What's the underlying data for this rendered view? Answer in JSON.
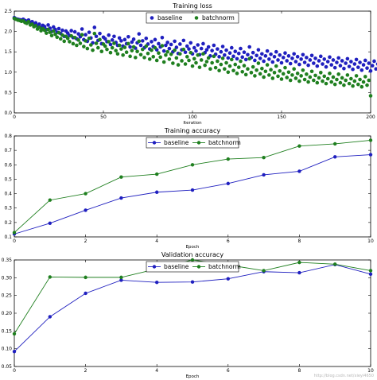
{
  "watermark": "http://blog.csdn.net/xieyi4650",
  "chart_data": [
    {
      "type": "scatter",
      "title": "Training loss",
      "xlabel": "Iteration",
      "ylabel": "",
      "xlim": [
        0,
        200
      ],
      "ylim": [
        0.0,
        2.5
      ],
      "xticks": [
        0,
        50,
        100,
        150,
        200
      ],
      "yticks": [
        0.0,
        0.5,
        1.0,
        1.5,
        2.0,
        2.5
      ],
      "grid": false,
      "legend_position": "top-center",
      "series": [
        {
          "name": "baseline",
          "color": "#1f1fbf",
          "values": [
            2.34,
            2.31,
            2.3,
            2.29,
            2.28,
            2.3,
            2.27,
            2.25,
            2.28,
            2.22,
            2.24,
            2.19,
            2.21,
            2.14,
            2.18,
            2.1,
            2.15,
            2.12,
            2.05,
            2.16,
            2.08,
            2.0,
            2.11,
            2.05,
            1.98,
            2.07,
            1.95,
            2.03,
            1.88,
            2.01,
            1.96,
            1.9,
            2.02,
            1.85,
            1.99,
            1.82,
            1.94,
            1.87,
            2.06,
            1.8,
            1.92,
            1.76,
            1.98,
            1.84,
            1.72,
            2.1,
            1.88,
            1.78,
            1.95,
            1.7,
            1.86,
            1.82,
            1.75,
            1.91,
            1.68,
            1.79,
            1.88,
            1.73,
            1.66,
            1.84,
            1.77,
            1.64,
            1.8,
            1.7,
            1.87,
            1.62,
            1.74,
            1.81,
            1.59,
            1.72,
            1.94,
            1.66,
            1.77,
            1.6,
            1.83,
            1.69,
            1.57,
            1.75,
            1.63,
            1.8,
            1.55,
            1.7,
            1.62,
            1.85,
            1.52,
            1.66,
            1.73,
            1.58,
            1.68,
            1.5,
            1.76,
            1.61,
            1.46,
            1.69,
            1.55,
            1.78,
            1.49,
            1.64,
            1.57,
            1.72,
            1.45,
            1.6,
            1.52,
            1.67,
            1.43,
            1.58,
            1.7,
            1.48,
            1.55,
            1.62,
            1.4,
            1.53,
            1.66,
            1.44,
            1.57,
            1.38,
            1.5,
            1.63,
            1.42,
            1.54,
            1.35,
            1.47,
            1.6,
            1.39,
            1.51,
            1.33,
            1.46,
            1.58,
            1.37,
            1.49,
            1.31,
            1.43,
            1.62,
            1.36,
            1.48,
            1.29,
            1.41,
            1.55,
            1.34,
            1.45,
            1.27,
            1.4,
            1.52,
            1.32,
            1.44,
            1.25,
            1.38,
            1.5,
            1.3,
            1.42,
            1.23,
            1.36,
            1.47,
            1.28,
            1.4,
            1.21,
            1.34,
            1.45,
            1.26,
            1.38,
            1.19,
            1.32,
            1.43,
            1.24,
            1.36,
            1.17,
            1.3,
            1.41,
            1.22,
            1.34,
            1.15,
            1.28,
            1.39,
            1.2,
            1.32,
            1.13,
            1.26,
            1.37,
            1.18,
            1.3,
            1.11,
            1.24,
            1.35,
            1.16,
            1.28,
            1.09,
            1.22,
            1.33,
            1.14,
            1.26,
            1.07,
            1.2,
            1.31,
            1.12,
            1.24,
            1.05,
            1.18,
            1.29,
            1.1,
            1.22,
            1.03,
            1.16,
            1.27,
            1.08,
            1.2,
            1.01
          ]
        },
        {
          "name": "batchnorm",
          "color": "#1f7f1f",
          "values": [
            2.32,
            2.3,
            2.28,
            2.27,
            2.25,
            2.26,
            2.22,
            2.2,
            2.24,
            2.16,
            2.18,
            2.12,
            2.14,
            2.06,
            2.1,
            2.02,
            2.07,
            2.03,
            1.96,
            2.05,
            1.98,
            1.9,
            2.01,
            1.93,
            1.86,
            1.97,
            1.82,
            1.91,
            1.76,
            1.88,
            1.83,
            1.75,
            1.89,
            1.7,
            1.85,
            1.66,
            1.79,
            1.71,
            1.92,
            1.63,
            1.77,
            1.58,
            1.83,
            1.67,
            1.54,
            1.95,
            1.71,
            1.6,
            1.8,
            1.51,
            1.69,
            1.64,
            1.56,
            1.75,
            1.48,
            1.6,
            1.71,
            1.53,
            1.45,
            1.66,
            1.57,
            1.42,
            1.61,
            1.49,
            1.7,
            1.39,
            1.53,
            1.62,
            1.36,
            1.51,
            1.76,
            1.43,
            1.56,
            1.36,
            1.64,
            1.46,
            1.32,
            1.54,
            1.38,
            1.6,
            1.29,
            1.47,
            1.37,
            1.65,
            1.25,
            1.42,
            1.5,
            1.32,
            1.44,
            1.22,
            1.54,
            1.35,
            1.18,
            1.45,
            1.28,
            1.56,
            1.2,
            1.38,
            1.29,
            1.48,
            1.15,
            1.33,
            1.23,
            1.42,
            1.12,
            1.3,
            1.45,
            1.17,
            1.26,
            1.35,
            1.08,
            1.23,
            1.39,
            1.11,
            1.27,
            1.04,
            1.19,
            1.34,
            1.08,
            1.23,
            1.0,
            1.15,
            1.31,
            1.04,
            1.19,
            0.97,
            1.12,
            1.27,
            1.01,
            1.16,
            0.94,
            1.08,
            1.33,
            0.99,
            1.13,
            0.91,
            1.05,
            1.22,
            0.96,
            1.09,
            0.88,
            1.02,
            1.18,
            0.93,
            1.06,
            0.85,
            0.99,
            1.15,
            0.9,
            1.03,
            0.83,
            0.96,
            1.11,
            0.87,
            1.0,
            0.8,
            0.93,
            1.08,
            0.85,
            0.97,
            0.78,
            0.91,
            1.05,
            0.82,
            0.95,
            0.76,
            0.88,
            1.02,
            0.8,
            0.92,
            0.74,
            0.86,
            0.99,
            0.78,
            0.9,
            0.72,
            0.84,
            0.97,
            0.76,
            0.88,
            0.7,
            0.82,
            0.95,
            0.74,
            0.86,
            0.68,
            0.8,
            0.93,
            0.72,
            0.84,
            0.66,
            0.78,
            0.91,
            0.7,
            0.82,
            0.64,
            0.76,
            0.89,
            0.68,
            0.8,
            0.42
          ]
        }
      ]
    },
    {
      "type": "line",
      "title": "Training accuracy",
      "xlabel": "Epoch",
      "ylabel": "",
      "xlim": [
        0,
        10
      ],
      "ylim": [
        0.1,
        0.8
      ],
      "xticks": [
        0,
        2,
        4,
        6,
        8,
        10
      ],
      "yticks": [
        0.1,
        0.2,
        0.3,
        0.4,
        0.5,
        0.6,
        0.7,
        0.8
      ],
      "grid": false,
      "legend_position": "top-center",
      "x": [
        0,
        1,
        2,
        3,
        4,
        5,
        6,
        7,
        8,
        9,
        10
      ],
      "series": [
        {
          "name": "baseline",
          "color": "#1f1fbf",
          "values": [
            0.12,
            0.195,
            0.285,
            0.37,
            0.41,
            0.425,
            0.47,
            0.53,
            0.555,
            0.655,
            0.67
          ]
        },
        {
          "name": "batchnorm",
          "color": "#1f7f1f",
          "values": [
            0.13,
            0.355,
            0.4,
            0.515,
            0.535,
            0.6,
            0.64,
            0.65,
            0.73,
            0.745,
            0.77
          ]
        }
      ]
    },
    {
      "type": "line",
      "title": "Validation accuracy",
      "xlabel": "Epoch",
      "ylabel": "",
      "xlim": [
        0,
        10
      ],
      "ylim": [
        0.05,
        0.35
      ],
      "xticks": [
        0,
        2,
        4,
        6,
        8,
        10
      ],
      "yticks": [
        0.05,
        0.1,
        0.15,
        0.2,
        0.25,
        0.3,
        0.35
      ],
      "grid": false,
      "legend_position": "top-center",
      "x": [
        0,
        1,
        2,
        3,
        4,
        5,
        6,
        7,
        8,
        9,
        10
      ],
      "series": [
        {
          "name": "baseline",
          "color": "#1f1fbf",
          "values": [
            0.092,
            0.19,
            0.256,
            0.293,
            0.287,
            0.288,
            0.297,
            0.317,
            0.314,
            0.337,
            0.31
          ]
        },
        {
          "name": "batchnorm",
          "color": "#1f7f1f",
          "values": [
            0.142,
            0.302,
            0.301,
            0.301,
            0.325,
            0.35,
            0.336,
            0.32,
            0.343,
            0.338,
            0.32
          ]
        }
      ]
    }
  ]
}
